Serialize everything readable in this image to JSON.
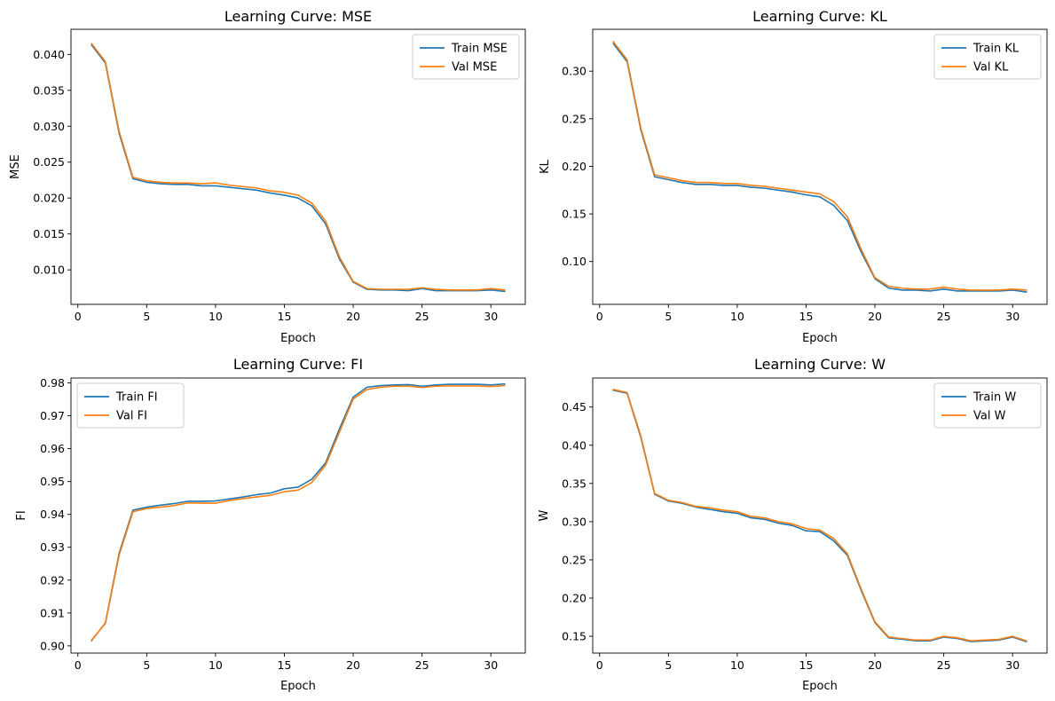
{
  "colors": {
    "train": "#1f77b4",
    "val": "#ff7f0e"
  },
  "chart_data": [
    {
      "type": "line",
      "title": "Learning Curve: MSE",
      "xlabel": "Epoch",
      "ylabel": "MSE",
      "xlim": [
        -0.5,
        32.5
      ],
      "ylim": [
        0.0052,
        0.0435
      ],
      "xticks": [
        0,
        5,
        10,
        15,
        20,
        25,
        30
      ],
      "yticks": [
        0.01,
        0.015,
        0.02,
        0.025,
        0.03,
        0.035,
        0.04
      ],
      "ytick_labels": [
        "0.010",
        "0.015",
        "0.020",
        "0.025",
        "0.030",
        "0.035",
        "0.040"
      ],
      "legend_position": "upper right",
      "x": [
        1,
        2,
        3,
        4,
        5,
        6,
        7,
        8,
        9,
        10,
        11,
        12,
        13,
        14,
        15,
        16,
        17,
        18,
        19,
        20,
        21,
        22,
        23,
        24,
        25,
        26,
        27,
        28,
        29,
        30,
        31
      ],
      "series": [
        {
          "name": "Train MSE",
          "values": [
            0.0413,
            0.0388,
            0.029,
            0.0227,
            0.0222,
            0.022,
            0.0219,
            0.0219,
            0.0217,
            0.0217,
            0.0215,
            0.0213,
            0.0211,
            0.0207,
            0.0204,
            0.02,
            0.0189,
            0.0164,
            0.0115,
            0.0083,
            0.0073,
            0.0072,
            0.0072,
            0.0071,
            0.0074,
            0.0071,
            0.0071,
            0.0071,
            0.0071,
            0.0072,
            0.007
          ]
        },
        {
          "name": "Val MSE",
          "values": [
            0.0415,
            0.039,
            0.0293,
            0.0229,
            0.0224,
            0.0222,
            0.0221,
            0.0221,
            0.022,
            0.0221,
            0.0218,
            0.0216,
            0.0214,
            0.021,
            0.0208,
            0.0204,
            0.0193,
            0.0168,
            0.0118,
            0.0084,
            0.0074,
            0.0073,
            0.0073,
            0.0073,
            0.0075,
            0.0073,
            0.0072,
            0.0072,
            0.0072,
            0.0074,
            0.0072
          ]
        }
      ]
    },
    {
      "type": "line",
      "title": "Learning Curve: KL",
      "xlabel": "Epoch",
      "ylabel": "KL",
      "xlim": [
        -0.5,
        32.5
      ],
      "ylim": [
        0.055,
        0.344
      ],
      "xticks": [
        0,
        5,
        10,
        15,
        20,
        25,
        30
      ],
      "yticks": [
        0.1,
        0.15,
        0.2,
        0.25,
        0.3
      ],
      "ytick_labels": [
        "0.10",
        "0.15",
        "0.20",
        "0.25",
        "0.30"
      ],
      "legend_position": "upper right",
      "x": [
        1,
        2,
        3,
        4,
        5,
        6,
        7,
        8,
        9,
        10,
        11,
        12,
        13,
        14,
        15,
        16,
        17,
        18,
        19,
        20,
        21,
        22,
        23,
        24,
        25,
        26,
        27,
        28,
        29,
        30,
        31
      ],
      "series": [
        {
          "name": "Train KL",
          "values": [
            0.329,
            0.31,
            0.238,
            0.189,
            0.186,
            0.183,
            0.181,
            0.181,
            0.18,
            0.18,
            0.178,
            0.177,
            0.175,
            0.173,
            0.17,
            0.168,
            0.159,
            0.143,
            0.11,
            0.082,
            0.072,
            0.07,
            0.07,
            0.069,
            0.071,
            0.069,
            0.069,
            0.069,
            0.069,
            0.07,
            0.068
          ]
        },
        {
          "name": "Val KL",
          "values": [
            0.331,
            0.312,
            0.24,
            0.191,
            0.188,
            0.185,
            0.183,
            0.183,
            0.182,
            0.182,
            0.18,
            0.179,
            0.177,
            0.175,
            0.173,
            0.171,
            0.163,
            0.147,
            0.113,
            0.083,
            0.074,
            0.072,
            0.071,
            0.071,
            0.073,
            0.071,
            0.07,
            0.07,
            0.07,
            0.071,
            0.07
          ]
        }
      ]
    },
    {
      "type": "line",
      "title": "Learning Curve: FI",
      "xlabel": "Epoch",
      "ylabel": "FI",
      "xlim": [
        -0.5,
        32.5
      ],
      "ylim": [
        0.8978,
        0.9815
      ],
      "xticks": [
        0,
        5,
        10,
        15,
        20,
        25,
        30
      ],
      "yticks": [
        0.9,
        0.91,
        0.92,
        0.93,
        0.94,
        0.95,
        0.96,
        0.97,
        0.98
      ],
      "ytick_labels": [
        "0.90",
        "0.91",
        "0.92",
        "0.93",
        "0.94",
        "0.95",
        "0.96",
        "0.97",
        "0.98"
      ],
      "legend_position": "upper left",
      "x": [
        1,
        2,
        3,
        4,
        5,
        6,
        7,
        8,
        9,
        10,
        11,
        12,
        13,
        14,
        15,
        16,
        17,
        18,
        19,
        20,
        21,
        22,
        23,
        24,
        25,
        26,
        27,
        28,
        29,
        30,
        31
      ],
      "series": [
        {
          "name": "Train FI",
          "values": [
            0.9016,
            0.907,
            0.9282,
            0.9413,
            0.9422,
            0.9428,
            0.9433,
            0.944,
            0.944,
            0.9441,
            0.9447,
            0.9453,
            0.946,
            0.9465,
            0.9478,
            0.9483,
            0.9507,
            0.9557,
            0.966,
            0.9757,
            0.9787,
            0.9792,
            0.9794,
            0.9795,
            0.979,
            0.9794,
            0.9796,
            0.9796,
            0.9796,
            0.9794,
            0.9797
          ]
        },
        {
          "name": "Val FI",
          "values": [
            0.9018,
            0.9068,
            0.9276,
            0.9408,
            0.9418,
            0.9422,
            0.9427,
            0.9435,
            0.9434,
            0.9434,
            0.9442,
            0.9448,
            0.9453,
            0.9458,
            0.9469,
            0.9474,
            0.9497,
            0.955,
            0.965,
            0.9751,
            0.978,
            0.9787,
            0.979,
            0.979,
            0.9786,
            0.979,
            0.9791,
            0.9791,
            0.9791,
            0.9789,
            0.9792
          ]
        }
      ]
    },
    {
      "type": "line",
      "title": "Learning Curve: W",
      "xlabel": "Epoch",
      "ylabel": "W",
      "xlim": [
        -0.5,
        32.5
      ],
      "ylim": [
        0.128,
        0.488
      ],
      "xticks": [
        0,
        5,
        10,
        15,
        20,
        25,
        30
      ],
      "yticks": [
        0.15,
        0.2,
        0.25,
        0.3,
        0.35,
        0.4,
        0.45
      ],
      "ytick_labels": [
        "0.15",
        "0.20",
        "0.25",
        "0.30",
        "0.35",
        "0.40",
        "0.45"
      ],
      "legend_position": "upper right",
      "x": [
        1,
        2,
        3,
        4,
        5,
        6,
        7,
        8,
        9,
        10,
        11,
        12,
        13,
        14,
        15,
        16,
        17,
        18,
        19,
        20,
        21,
        22,
        23,
        24,
        25,
        26,
        27,
        28,
        29,
        30,
        31
      ],
      "series": [
        {
          "name": "Train W",
          "values": [
            0.472,
            0.468,
            0.41,
            0.336,
            0.327,
            0.324,
            0.319,
            0.316,
            0.313,
            0.311,
            0.305,
            0.303,
            0.298,
            0.295,
            0.288,
            0.287,
            0.275,
            0.256,
            0.21,
            0.168,
            0.148,
            0.146,
            0.144,
            0.144,
            0.149,
            0.147,
            0.143,
            0.144,
            0.145,
            0.149,
            0.143
          ]
        },
        {
          "name": "Val W",
          "values": [
            0.473,
            0.469,
            0.412,
            0.337,
            0.328,
            0.325,
            0.32,
            0.318,
            0.315,
            0.313,
            0.307,
            0.305,
            0.3,
            0.297,
            0.291,
            0.289,
            0.278,
            0.258,
            0.212,
            0.169,
            0.149,
            0.147,
            0.145,
            0.145,
            0.15,
            0.148,
            0.144,
            0.145,
            0.146,
            0.15,
            0.144
          ]
        }
      ]
    }
  ]
}
